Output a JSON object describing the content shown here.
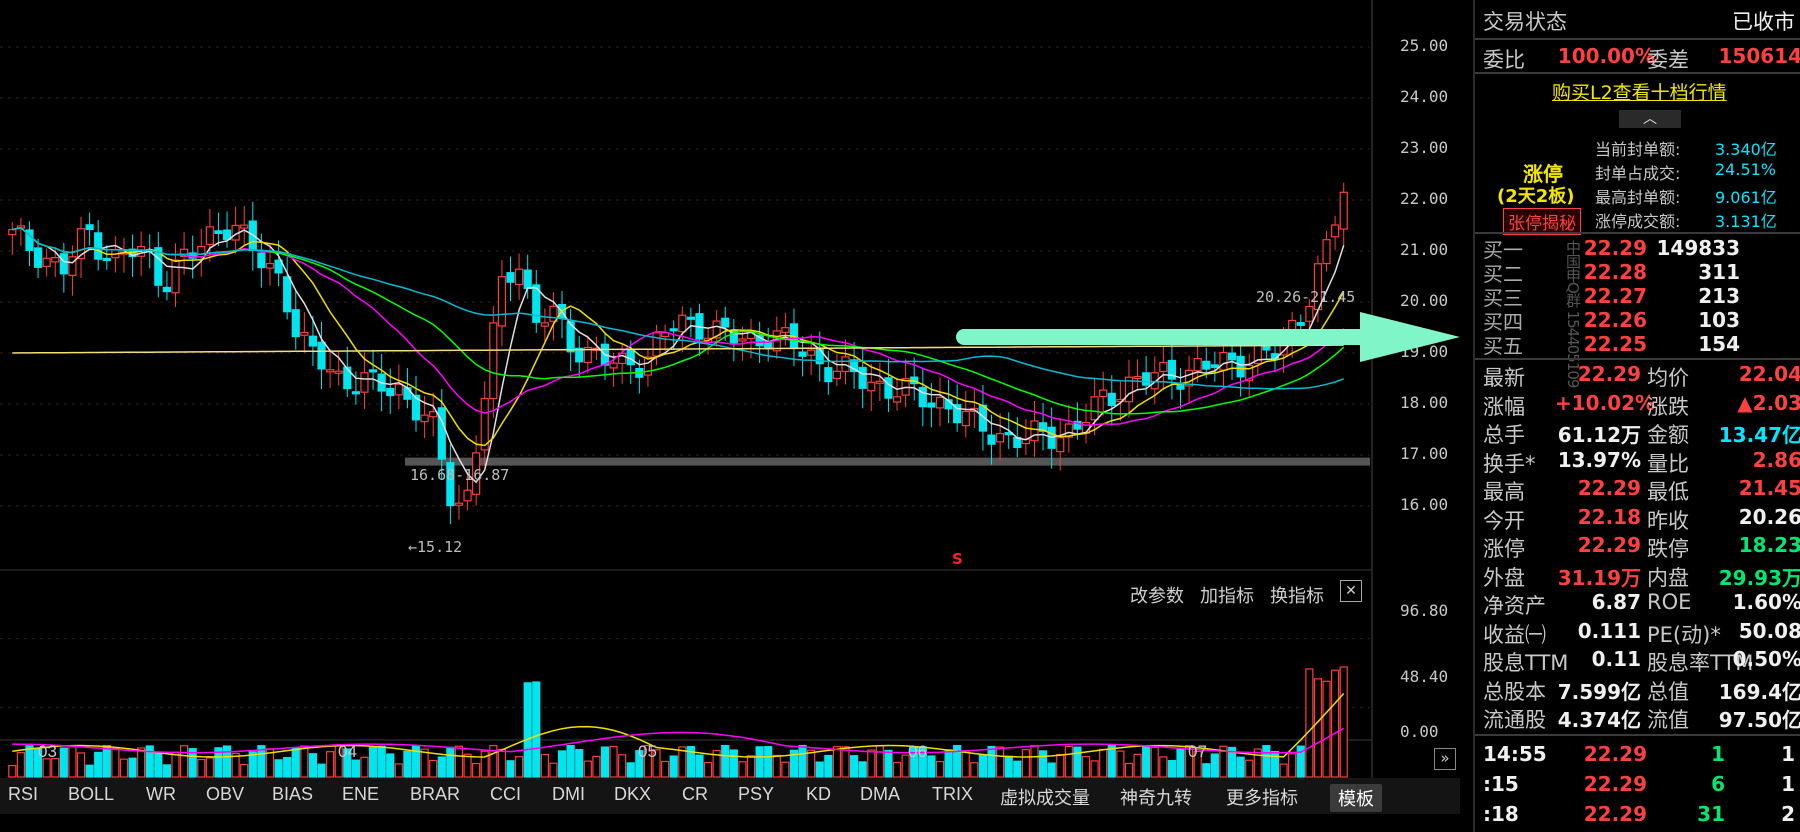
{
  "chart": {
    "yticks": [
      "25.00",
      "24.00",
      "23.00",
      "22.00",
      "21.00",
      "20.00",
      "19.00",
      "18.00",
      "17.00",
      "16.00"
    ],
    "vol_ticks": [
      "96.80",
      "48.40",
      "0.00"
    ],
    "xticks": [
      "03",
      "04",
      "05",
      "06",
      "07"
    ],
    "annotation_range": "16.68-16.87",
    "annotation_low": "←15.12",
    "annotation_high": "20.26-21.45",
    "signal_marker": "S",
    "toolbar": {
      "adjust": "改参数",
      "add": "加指标",
      "switch": "换指标",
      "close": "✕"
    },
    "expand_arrow": "»"
  },
  "chart_data": {
    "type": "candlestick",
    "y_range": [
      15.0,
      25.0
    ],
    "volume_range": [
      0,
      96.8
    ],
    "last_close": 22.29,
    "prev_close": 20.26,
    "period_low": 15.12,
    "support_range": "16.68-16.87",
    "breakout_range": "20.26-21.45"
  },
  "bottom_tabs": [
    "RSI",
    "BOLL",
    "WR",
    "OBV",
    "BIAS",
    "ENE",
    "BRAR",
    "CCI",
    "DMI",
    "DKX",
    "CR",
    "PSY",
    "KD",
    "DMA",
    "TRIX",
    "虚拟成交量",
    "神奇九转",
    "更多指标",
    "模板"
  ],
  "side": {
    "status_label": "交易状态",
    "status_value": "已收市",
    "weibi_label": "委比",
    "weibi_value": "100.00%",
    "weicha_label": "委差",
    "weicha_value": "150614",
    "l2_link": "购买L2查看十档行情",
    "limit_title": "涨停",
    "limit_days": "(2天2板)",
    "limit_secret_button": "张停揭秘",
    "limit_stats": [
      {
        "label": "当前封单额:",
        "value": "3.340亿"
      },
      {
        "label": "封单占成交:",
        "value": "24.51%"
      },
      {
        "label": "最高封单额:",
        "value": "9.061亿"
      },
      {
        "label": "涨停成交额:",
        "value": "3.131亿"
      }
    ],
    "watermark": "中国申Q群 154405109",
    "bids": [
      {
        "label": "买一",
        "price": "22.29",
        "vol": "149833"
      },
      {
        "label": "买二",
        "price": "22.28",
        "vol": "311"
      },
      {
        "label": "买三",
        "price": "22.27",
        "vol": "213"
      },
      {
        "label": "买四",
        "price": "22.26",
        "vol": "103"
      },
      {
        "label": "买五",
        "price": "22.25",
        "vol": "154"
      }
    ],
    "quote": [
      {
        "l1": "最新",
        "v1": "22.29",
        "c1": "red",
        "l2": "均价",
        "v2": "22.04",
        "c2": "red"
      },
      {
        "l1": "涨幅",
        "v1": "+10.02%",
        "c1": "red",
        "l2": "涨跌",
        "v2": "▲2.03",
        "c2": "red"
      },
      {
        "l1": "总手",
        "v1": "61.12万",
        "c1": "white",
        "l2": "金额",
        "v2": "13.47亿",
        "c2": "cyan"
      },
      {
        "l1": "换手*",
        "v1": "13.97%",
        "c1": "white",
        "l2": "量比",
        "v2": "2.86",
        "c2": "red"
      },
      {
        "l1": "最高",
        "v1": "22.29",
        "c1": "red",
        "l2": "最低",
        "v2": "21.45",
        "c2": "red"
      },
      {
        "l1": "今开",
        "v1": "22.18",
        "c1": "red",
        "l2": "昨收",
        "v2": "20.26",
        "c2": "white"
      },
      {
        "l1": "涨停",
        "v1": "22.29",
        "c1": "red",
        "l2": "跌停",
        "v2": "18.23",
        "c2": "green"
      },
      {
        "l1": "外盘",
        "v1": "31.19万",
        "c1": "red",
        "l2": "内盘",
        "v2": "29.93万",
        "c2": "green"
      },
      {
        "l1": "净资产",
        "v1": "6.87",
        "c1": "white",
        "l2": "ROE",
        "v2": "1.60%",
        "c2": "white"
      },
      {
        "l1": "收益㈠",
        "v1": "0.111",
        "c1": "white",
        "l2": "PE(动)*",
        "v2": "50.08",
        "c2": "white"
      },
      {
        "l1": "股息TTM",
        "v1": "0.11",
        "c1": "white",
        "l2": "股息率TTM",
        "v2": "0.50%",
        "c2": "white"
      },
      {
        "l1": "总股本",
        "v1": "7.599亿",
        "c1": "white",
        "l2": "总值",
        "v2": "169.4亿",
        "c2": "white"
      },
      {
        "l1": "流通股",
        "v1": "4.374亿",
        "c1": "white",
        "l2": "流值",
        "v2": "97.50亿",
        "c2": "white"
      }
    ],
    "ticks": [
      {
        "time": "14:55",
        "price": "22.29",
        "vol": "1",
        "n": "1"
      },
      {
        "time": ":15",
        "price": "22.29",
        "vol": "6",
        "n": "1"
      },
      {
        "time": ":18",
        "price": "22.29",
        "vol": "31",
        "n": "2"
      }
    ]
  }
}
